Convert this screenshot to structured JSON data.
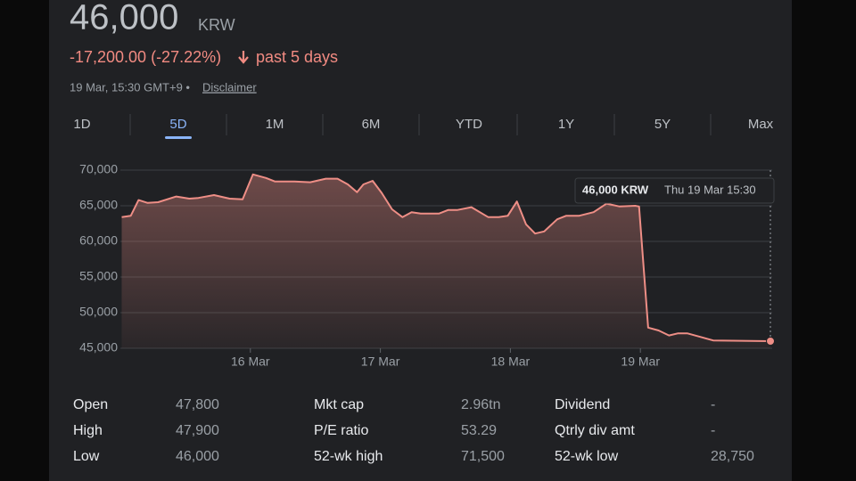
{
  "header": {
    "price": "46,000",
    "currency": "KRW",
    "change": "-17,200.00 (-27.22%)",
    "period": "past 5 days",
    "timestamp": "19 Mar, 15:30 GMT+9 •",
    "disclaimer": "Disclaimer"
  },
  "tabs": [
    "1D",
    "5D",
    "1M",
    "6M",
    "YTD",
    "1Y",
    "5Y",
    "Max"
  ],
  "selected_tab": 1,
  "chart_data": {
    "type": "line",
    "color": "#ee8e86",
    "grid": true,
    "x": [
      0.01,
      0.08,
      0.14,
      0.21,
      0.29,
      0.43,
      0.53,
      0.6,
      0.72,
      0.84,
      0.94,
      1.02,
      1.12,
      1.19,
      1.34,
      1.46,
      1.58,
      1.67,
      1.75,
      1.82,
      1.87,
      1.94,
      2.01,
      2.09,
      2.17,
      2.24,
      2.31,
      2.45,
      2.52,
      2.59,
      2.7,
      2.83,
      2.91,
      2.98,
      3.05,
      3.12,
      3.19,
      3.26,
      3.36,
      3.43,
      3.53,
      3.64,
      3.74,
      3.84,
      3.96,
      3.99,
      4.06,
      4.14,
      4.22,
      4.29,
      4.36,
      4.46,
      4.56,
      5.0
    ],
    "values": [
      63400,
      63600,
      65800,
      65400,
      65500,
      66300,
      66000,
      66100,
      66500,
      66000,
      65900,
      69400,
      68900,
      68400,
      68400,
      68300,
      68800,
      68800,
      68000,
      66900,
      68000,
      68500,
      66800,
      64500,
      63400,
      64100,
      63900,
      63900,
      64400,
      64400,
      64800,
      63400,
      63400,
      63600,
      65600,
      62400,
      61100,
      61400,
      63100,
      63600,
      63600,
      64100,
      65300,
      64900,
      65000,
      64900,
      47900,
      47500,
      46800,
      47100,
      47100,
      46600,
      46100,
      46000
    ],
    "xlim": [
      0,
      5
    ],
    "xticks": [
      {
        "value": 1,
        "label": "16 Mar"
      },
      {
        "value": 2,
        "label": "17 Mar"
      },
      {
        "value": 3,
        "label": "18 Mar"
      },
      {
        "value": 4,
        "label": "19 Mar"
      }
    ],
    "ylim": [
      45000,
      70000
    ],
    "yticks": [
      {
        "value": 45000,
        "label": "45,000"
      },
      {
        "value": 50000,
        "label": "50,000"
      },
      {
        "value": 55000,
        "label": "55,000"
      },
      {
        "value": 60000,
        "label": "60,000"
      },
      {
        "value": 65000,
        "label": "65,000"
      },
      {
        "value": 70000,
        "label": "70,000"
      }
    ]
  },
  "tooltip": {
    "price": "46,000 KRW",
    "time": "Thu 19 Mar 15:30"
  },
  "stats": [
    [
      [
        "Open",
        "47,800"
      ],
      [
        "Mkt cap",
        "2.96tn"
      ],
      [
        "Dividend",
        "-"
      ]
    ],
    [
      [
        "High",
        "47,900"
      ],
      [
        "P/E ratio",
        "53.29"
      ],
      [
        "Qtrly div amt",
        "-"
      ]
    ],
    [
      [
        "Low",
        "46,000"
      ],
      [
        "52-wk high",
        "71,500"
      ],
      [
        "52-wk low",
        "28,750"
      ]
    ]
  ]
}
